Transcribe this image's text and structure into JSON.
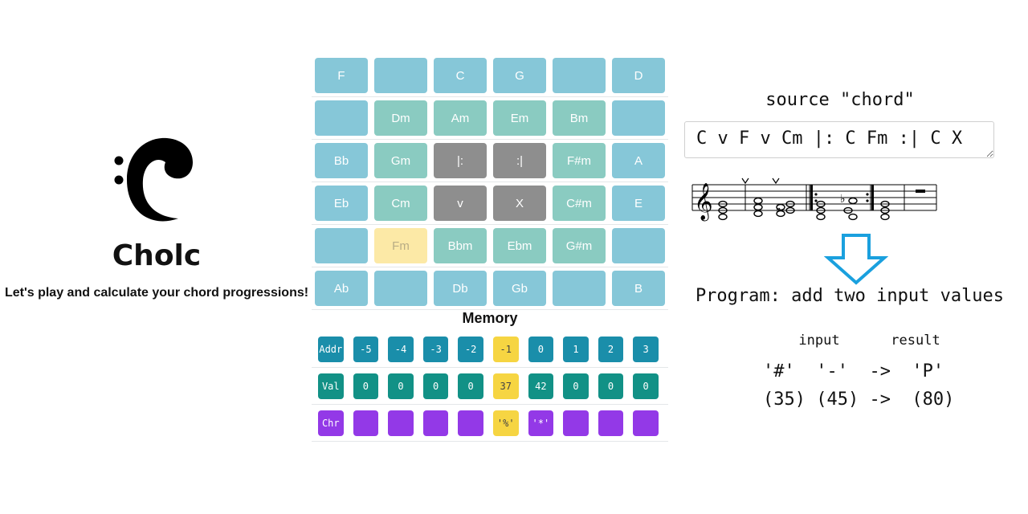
{
  "app": {
    "title": "Cholc",
    "tagline": "Let's play and calculate your chord progressions!",
    "logo_icon": "bass-clef-icon"
  },
  "chord_grid": [
    [
      {
        "label": "F",
        "kind": "major"
      },
      {
        "label": "",
        "kind": "major"
      },
      {
        "label": "C",
        "kind": "major"
      },
      {
        "label": "G",
        "kind": "major"
      },
      {
        "label": "",
        "kind": "major"
      },
      {
        "label": "D",
        "kind": "major"
      }
    ],
    [
      {
        "label": "",
        "kind": "major"
      },
      {
        "label": "Dm",
        "kind": "minor"
      },
      {
        "label": "Am",
        "kind": "minor"
      },
      {
        "label": "Em",
        "kind": "minor"
      },
      {
        "label": "Bm",
        "kind": "minor"
      },
      {
        "label": "",
        "kind": "major"
      }
    ],
    [
      {
        "label": "Bb",
        "kind": "major"
      },
      {
        "label": "Gm",
        "kind": "minor"
      },
      {
        "label": "|:",
        "kind": "op"
      },
      {
        "label": ":|",
        "kind": "op"
      },
      {
        "label": "F#m",
        "kind": "minor"
      },
      {
        "label": "A",
        "kind": "major"
      }
    ],
    [
      {
        "label": "Eb",
        "kind": "major"
      },
      {
        "label": "Cm",
        "kind": "minor"
      },
      {
        "label": "v",
        "kind": "op"
      },
      {
        "label": "X",
        "kind": "op"
      },
      {
        "label": "C#m",
        "kind": "minor"
      },
      {
        "label": "E",
        "kind": "major"
      }
    ],
    [
      {
        "label": "",
        "kind": "major"
      },
      {
        "label": "Fm",
        "kind": "active"
      },
      {
        "label": "Bbm",
        "kind": "minor"
      },
      {
        "label": "Ebm",
        "kind": "minor"
      },
      {
        "label": "G#m",
        "kind": "minor"
      },
      {
        "label": "",
        "kind": "major"
      }
    ],
    [
      {
        "label": "Ab",
        "kind": "major"
      },
      {
        "label": "",
        "kind": "major"
      },
      {
        "label": "Db",
        "kind": "major"
      },
      {
        "label": "Gb",
        "kind": "major"
      },
      {
        "label": "",
        "kind": "major"
      },
      {
        "label": "B",
        "kind": "major"
      }
    ]
  ],
  "memory": {
    "title": "Memory",
    "rows": [
      {
        "header": "Addr",
        "kind": "addr",
        "cells": [
          "-5",
          "-4",
          "-3",
          "-2",
          "-1",
          "0",
          "1",
          "2",
          "3"
        ]
      },
      {
        "header": "Val",
        "kind": "val",
        "cells": [
          "0",
          "0",
          "0",
          "0",
          "37",
          "42",
          "0",
          "0",
          "0"
        ]
      },
      {
        "header": "Chr",
        "kind": "chr",
        "cells": [
          "",
          "",
          "",
          "",
          "'%'",
          "'*'",
          "",
          "",
          ""
        ]
      }
    ],
    "highlight_index": 4,
    "colors": {
      "addr": "#1a8eaa",
      "val": "#129186",
      "chr": "#9339e7",
      "highlight": "#f6d542"
    }
  },
  "source": {
    "label": "source \"chord\"",
    "value": "C v F v Cm |: C Fm :| C X"
  },
  "notation_icon": "music-staff-icon",
  "arrow_icon": "down-arrow-icon",
  "program": {
    "label": "Program: add two input values",
    "input_label": "input",
    "result_label": "result",
    "row1": "'#'  '-'  ->  'P'",
    "row2": "(35) (45) ->  (80)"
  }
}
